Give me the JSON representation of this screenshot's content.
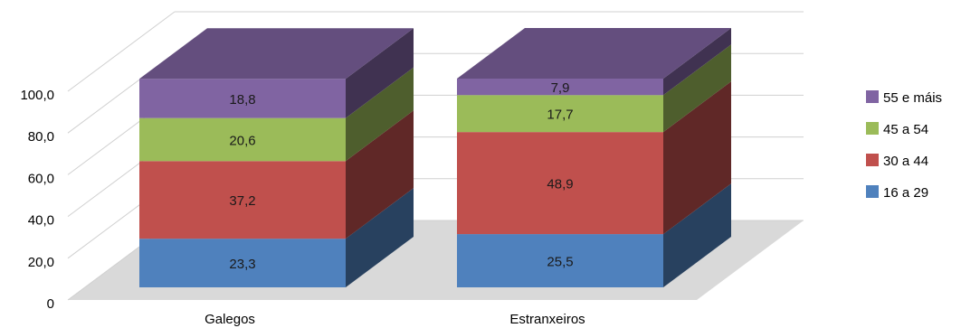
{
  "chart_data": {
    "type": "bar",
    "stacked": true,
    "three_d": true,
    "categories": [
      "Galegos",
      "Estranxeiros"
    ],
    "series": [
      {
        "name": "16 a 29",
        "values": [
          23.3,
          25.5
        ],
        "labels": [
          "23,3",
          "25,5"
        ],
        "color": "#4f81bd"
      },
      {
        "name": "30 a 44",
        "values": [
          37.2,
          48.9
        ],
        "labels": [
          "37,2",
          "48,9"
        ],
        "color": "#c0504d"
      },
      {
        "name": "45 a 54",
        "values": [
          20.6,
          17.7
        ],
        "labels": [
          "20,6",
          "17,7"
        ],
        "color": "#9bbb59"
      },
      {
        "name": "55 e máis",
        "values": [
          18.8,
          7.9
        ],
        "labels": [
          "18,8",
          "7,9"
        ],
        "color": "#8064a2"
      }
    ],
    "yticks": [
      "0",
      "20,0",
      "40,0",
      "60,0",
      "80,0",
      "100,0"
    ],
    "ylim": [
      0,
      100
    ],
    "grid": true,
    "legend": "right"
  }
}
